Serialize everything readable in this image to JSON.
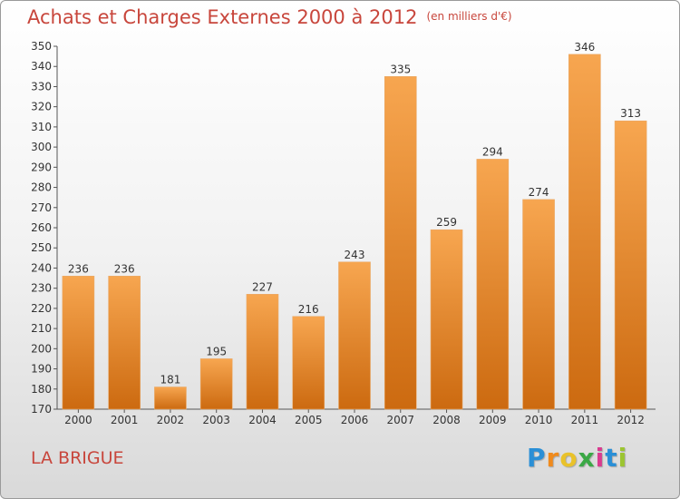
{
  "header": {
    "title": "Achats et Charges Externes 2000 à 2012",
    "unit": "(en milliers d'€)"
  },
  "footer": {
    "city": "LA BRIGUE",
    "logo": "Proxiti"
  },
  "colors": {
    "title": "#c8463c",
    "bar_light": "#f6a24c",
    "bar_dark": "#d06f12"
  },
  "chart_data": {
    "type": "bar",
    "title": "Achats et Charges Externes 2000 à 2012",
    "subtitle": "(en milliers d'€)",
    "xlabel": "",
    "ylabel": "",
    "categories": [
      "2000",
      "2001",
      "2002",
      "2003",
      "2004",
      "2005",
      "2006",
      "2007",
      "2008",
      "2009",
      "2010",
      "2011",
      "2012"
    ],
    "values": [
      236,
      236,
      181,
      195,
      227,
      216,
      243,
      335,
      259,
      294,
      274,
      346,
      313
    ],
    "ylim": [
      170,
      350
    ],
    "ytick_step": 10,
    "grid": false,
    "legend": "none"
  }
}
